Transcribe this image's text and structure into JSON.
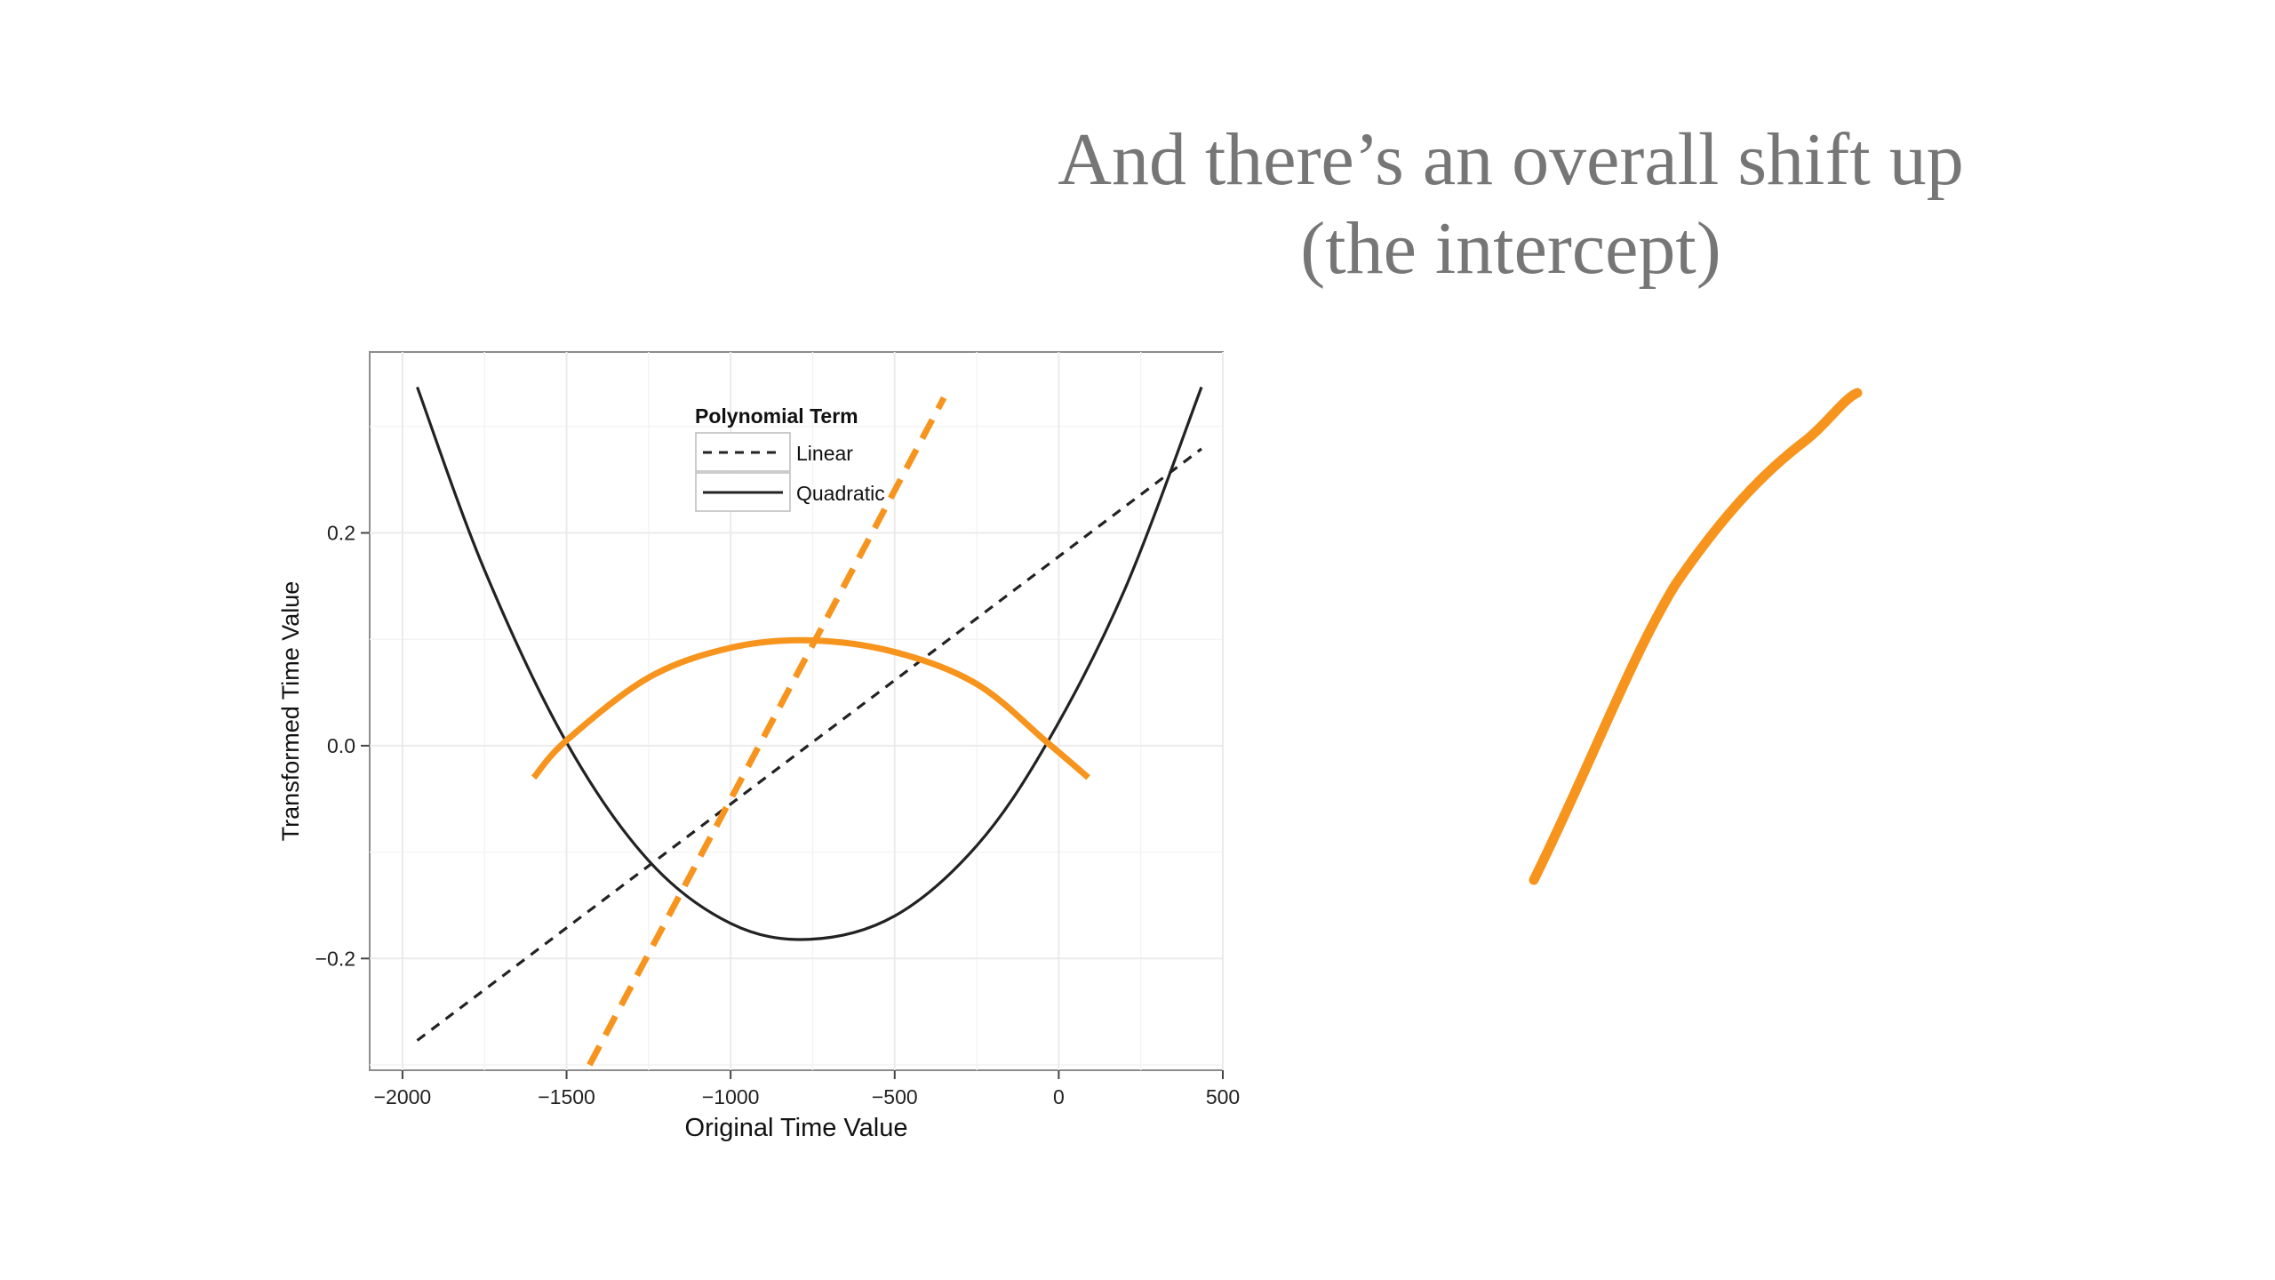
{
  "slide": {
    "title_line1": "And there’s an overall shift up",
    "title_line2": "(the intercept)"
  },
  "colors": {
    "accent": "#f7941d",
    "line": "#222222",
    "grid": "#ebebeb",
    "panel_border": "#8c8c8c",
    "title": "#767676"
  },
  "chart_data": {
    "type": "line",
    "title": "",
    "xlabel": "Original Time Value",
    "ylabel": "Transformed Time Value",
    "xlim": [
      -2100,
      500
    ],
    "ylim": [
      -0.305,
      0.37
    ],
    "xticks": [
      -2000,
      -1500,
      -1000,
      -500,
      0,
      500
    ],
    "xtick_labels": [
      "−2000",
      "−1500",
      "−1000",
      "−500",
      "0",
      "500"
    ],
    "yticks": [
      -0.2,
      0.0,
      0.2
    ],
    "ytick_labels": [
      "−0.2",
      "0.0",
      "0.2"
    ],
    "grid": true,
    "legend": {
      "title": "Polynomial Term",
      "placement": "top-center",
      "entries": [
        {
          "label": "Linear",
          "style": "dashed"
        },
        {
          "label": "Quadratic",
          "style": "solid"
        }
      ]
    },
    "series": [
      {
        "name": "Linear",
        "style": "dashed",
        "color": "#222222",
        "x": [
          -1955,
          435
        ],
        "y": [
          -0.277,
          0.279
        ]
      },
      {
        "name": "Quadratic",
        "style": "solid",
        "color": "#222222",
        "x": [
          -1955,
          -1750,
          -1500,
          -1250,
          -1000,
          -760,
          -500,
          -250,
          -35,
          200,
          435
        ],
        "y": [
          0.337,
          0.165,
          0.003,
          -0.108,
          -0.167,
          -0.182,
          -0.16,
          -0.094,
          0.003,
          0.146,
          0.337
        ]
      },
      {
        "color": "#f7941d",
        "style": "dashed",
        "x": [
          -1430,
          -350
        ],
        "y": [
          -0.3,
          0.327
        ]
      },
      {
        "color": "#f7941d",
        "style": "solid",
        "x": [
          -1600,
          -1500,
          -1250,
          -1000,
          -760,
          -500,
          -250,
          -35,
          90
        ],
        "y": [
          -0.03,
          0.005,
          0.064,
          0.092,
          0.099,
          0.088,
          0.058,
          0.003,
          -0.03
        ]
      }
    ]
  }
}
